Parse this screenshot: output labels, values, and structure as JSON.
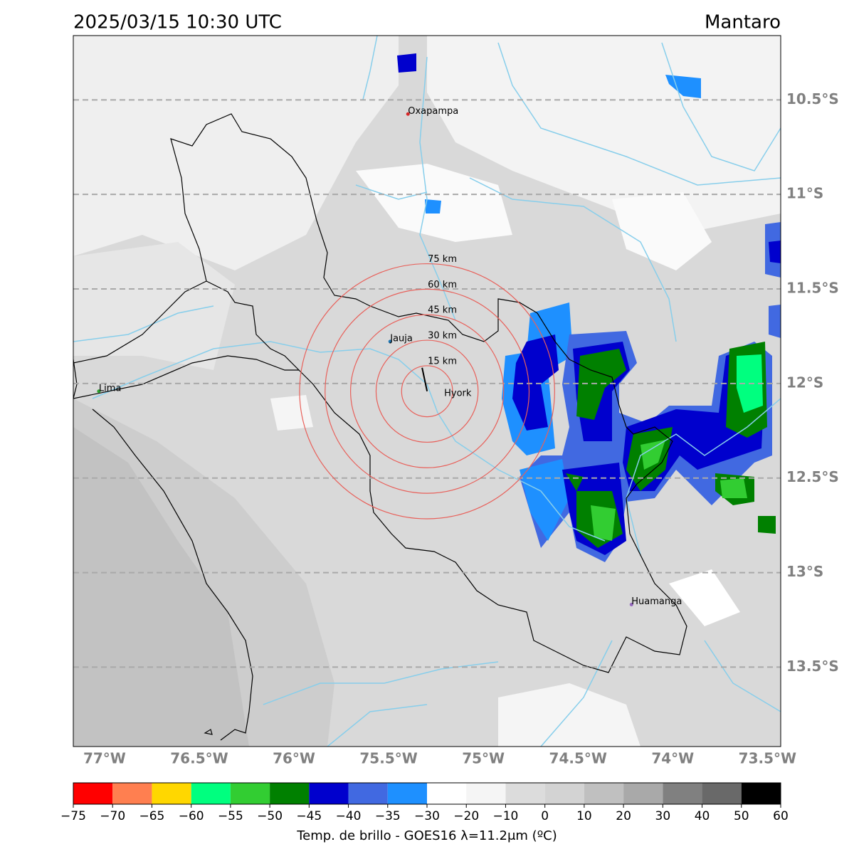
{
  "header": {
    "title": "2025/03/15 10:30 UTC",
    "region": "Mantaro"
  },
  "map": {
    "lonlim": [
      -77.165,
      -73.43
    ],
    "latlim": [
      -10.16,
      -13.92
    ],
    "lonticks": [
      {
        "value": -77,
        "label": "77°W"
      },
      {
        "value": -76.5,
        "label": "76.5°W"
      },
      {
        "value": -76,
        "label": "76°W"
      },
      {
        "value": -75.5,
        "label": "75.5°W"
      },
      {
        "value": -75,
        "label": "75°W"
      },
      {
        "value": -74.5,
        "label": "74.5°W"
      },
      {
        "value": -74,
        "label": "74°W"
      },
      {
        "value": -73.5,
        "label": "73.5°W"
      }
    ],
    "latticks": [
      {
        "value": -10.5,
        "label": "10.5°S"
      },
      {
        "value": -11,
        "label": "11°S"
      },
      {
        "value": -11.5,
        "label": "11.5°S"
      },
      {
        "value": -12,
        "label": "12°S"
      },
      {
        "value": -12.5,
        "label": "12.5°S"
      },
      {
        "value": -13,
        "label": "13°S"
      },
      {
        "value": -13.5,
        "label": "13.5°S"
      }
    ],
    "lat_grid": true,
    "places": [
      {
        "name": "Oxapampa",
        "lon": -75.398,
        "lat": -10.575,
        "color": "#d62728"
      },
      {
        "name": "Jauja",
        "lon": -75.492,
        "lat": -11.778,
        "color": "#1f77b4"
      },
      {
        "name": "Lima",
        "lon": -77.03,
        "lat": -12.041,
        "color": "#2ca02c"
      },
      {
        "name": "Huamanga",
        "lon": -74.218,
        "lat": -13.169,
        "color": "#9467bd"
      }
    ],
    "station": {
      "name": "Hyork",
      "lon": -75.297,
      "lat": -12.041
    },
    "rings": [
      {
        "value": 15,
        "label": "15 km"
      },
      {
        "value": 30,
        "label": "30 km"
      },
      {
        "value": 45,
        "label": "45 km"
      },
      {
        "value": 60,
        "label": "60 km"
      },
      {
        "value": 75,
        "label": "75 km"
      }
    ],
    "ring_color": "#e8605a"
  },
  "colorbar": {
    "bounds": [
      {
        "value": -75,
        "label": "−75"
      },
      {
        "value": -70,
        "label": "−70"
      },
      {
        "value": -65,
        "label": "−65"
      },
      {
        "value": -60,
        "label": "−60"
      },
      {
        "value": -55,
        "label": "−55"
      },
      {
        "value": -50,
        "label": "−50"
      },
      {
        "value": -45,
        "label": "−45"
      },
      {
        "value": -40,
        "label": "−40"
      },
      {
        "value": -35,
        "label": "−35"
      },
      {
        "value": -30,
        "label": "−30"
      },
      {
        "value": -20,
        "label": "−20"
      },
      {
        "value": -10,
        "label": "−10"
      },
      0,
      10,
      20,
      30,
      40,
      50,
      60
    ],
    "colors": [
      "#ff0000",
      "#ff7f50",
      "#ffd700",
      "#00ff7f",
      "#32cd32",
      "#008000",
      "#0000cd",
      "#4169e1",
      "#1e90ff",
      "#ffffff",
      "#f5f5f5",
      "#dcdcdc",
      "#d3d3d3",
      "#c0c0c0",
      "#a9a9a9",
      "#808080",
      "#696969",
      "#000000"
    ],
    "label": "Temp. de brillo - GOES16 λ=11.2μm (ºC)"
  }
}
